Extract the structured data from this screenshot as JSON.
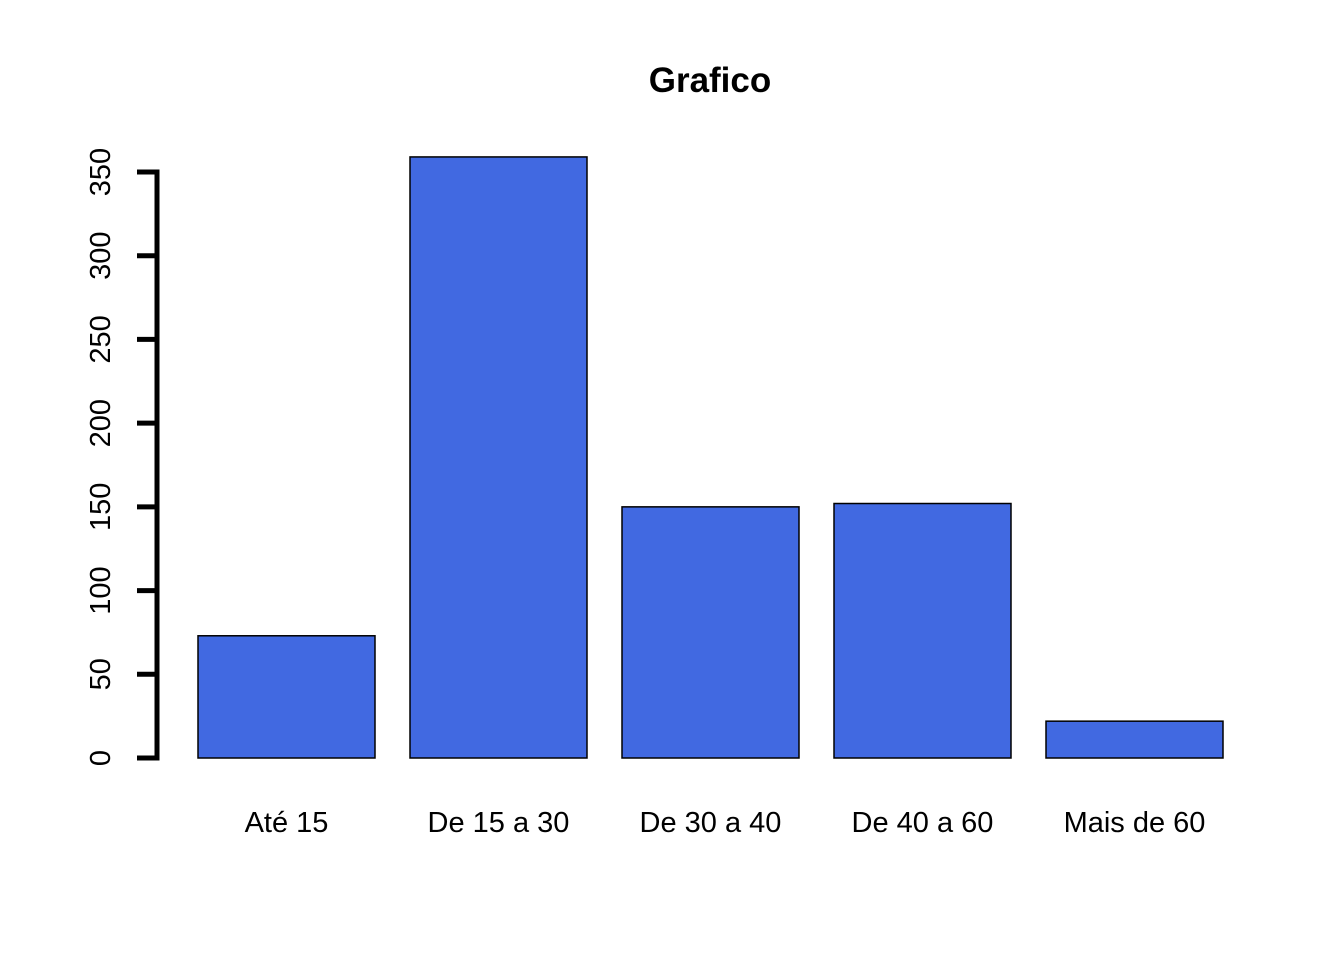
{
  "chart_data": {
    "type": "bar",
    "title": "Grafico",
    "xlabel": "",
    "ylabel": "",
    "categories": [
      "Até 15",
      "De 15 a 30",
      "De 30 a 40",
      "De 40 a 60",
      "Mais de 60"
    ],
    "values": [
      73,
      359,
      150,
      152,
      22
    ],
    "ylim": [
      0,
      350
    ],
    "yticks": [
      "0",
      "50",
      "100",
      "150",
      "200",
      "250",
      "300",
      "350"
    ],
    "bar_color": "#4169E1",
    "grid": false,
    "legend": "none"
  }
}
